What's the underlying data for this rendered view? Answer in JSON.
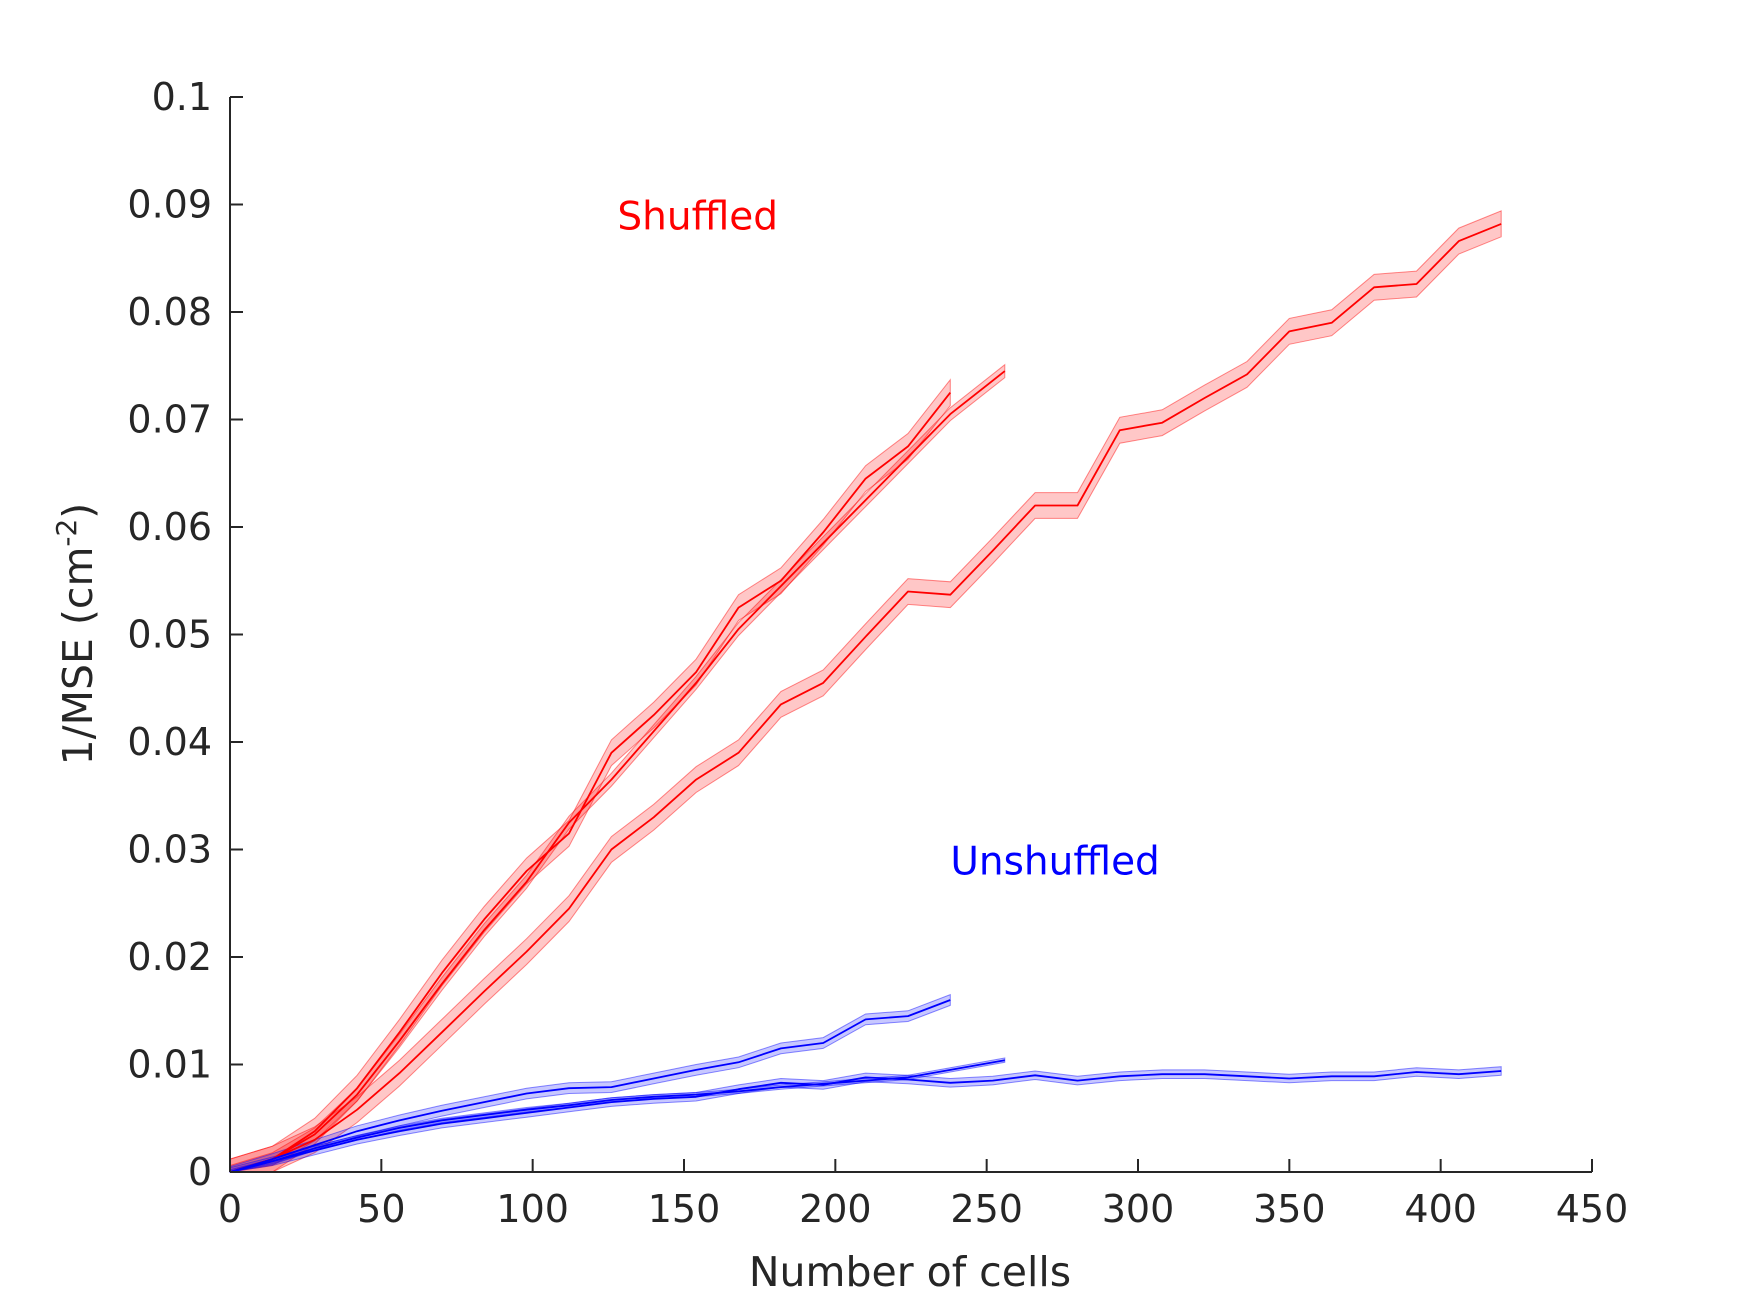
{
  "chart_data": {
    "type": "line",
    "xlabel": "Number of cells",
    "ylabel_main": "1/MSE (cm",
    "ylabel_sup": "-2",
    "ylabel_close": ")",
    "xlim": [
      0,
      450
    ],
    "ylim": [
      0,
      0.1
    ],
    "grid": false,
    "xticks": [
      "0",
      "50",
      "100",
      "150",
      "200",
      "250",
      "300",
      "350",
      "400",
      "450"
    ],
    "xtick_values": [
      0,
      50,
      100,
      150,
      200,
      250,
      300,
      350,
      400,
      450
    ],
    "yticks": [
      "0",
      "0.01",
      "0.02",
      "0.03",
      "0.04",
      "0.05",
      "0.06",
      "0.07",
      "0.08",
      "0.09",
      "0.1"
    ],
    "ytick_values": [
      0,
      0.01,
      0.02,
      0.03,
      0.04,
      0.05,
      0.06,
      0.07,
      0.08,
      0.09,
      0.1
    ],
    "annotations": [
      {
        "text": "Shuffled",
        "x": 128,
        "y": 0.089,
        "color": "#ff0000"
      },
      {
        "text": "Unshuffled",
        "x": 238,
        "y": 0.029,
        "color": "#0000ff"
      }
    ],
    "series": [
      {
        "group": "Shuffled",
        "color": "#ff0000",
        "x": [
          0,
          14,
          28,
          42,
          56,
          70,
          84,
          98,
          112,
          126,
          140,
          154,
          168,
          182,
          196,
          210,
          224,
          238
        ],
        "y": [
          0,
          0.0012,
          0.0038,
          0.0078,
          0.013,
          0.0185,
          0.0235,
          0.028,
          0.0315,
          0.039,
          0.0425,
          0.0465,
          0.0525,
          0.055,
          0.0595,
          0.0645,
          0.0675,
          0.0725
        ],
        "band": 0.0012
      },
      {
        "group": "Shuffled",
        "color": "#ff0000",
        "x": [
          0,
          14,
          28,
          42,
          56,
          70,
          84,
          98,
          112,
          126,
          140,
          154,
          168,
          182,
          196,
          210,
          224,
          238,
          256
        ],
        "y": [
          0,
          0.0012,
          0.0035,
          0.0072,
          0.0122,
          0.0175,
          0.0225,
          0.027,
          0.0325,
          0.0365,
          0.041,
          0.0455,
          0.0505,
          0.0545,
          0.0585,
          0.0625,
          0.0665,
          0.0705,
          0.0745
        ],
        "band": 0.0006
      },
      {
        "group": "Shuffled",
        "color": "#ff0000",
        "x": [
          0,
          14,
          28,
          42,
          56,
          70,
          84,
          98,
          112,
          126,
          140,
          154,
          168,
          182,
          196,
          210,
          224,
          238,
          252,
          266,
          280,
          294,
          308,
          322,
          336,
          350,
          364,
          378,
          392,
          406,
          420
        ],
        "y": [
          0,
          0.0012,
          0.003,
          0.0058,
          0.0092,
          0.013,
          0.0168,
          0.0205,
          0.0245,
          0.03,
          0.033,
          0.0365,
          0.039,
          0.0435,
          0.0455,
          0.0498,
          0.054,
          0.0537,
          0.0578,
          0.062,
          0.062,
          0.069,
          0.0697,
          0.072,
          0.0742,
          0.0782,
          0.079,
          0.0823,
          0.0826,
          0.0866,
          0.0882
        ],
        "band": 0.0012
      },
      {
        "group": "Unshuffled",
        "color": "#0000ff",
        "x": [
          0,
          14,
          28,
          42,
          56,
          70,
          84,
          98,
          112,
          126,
          140,
          154,
          168,
          182,
          196,
          210,
          224,
          238
        ],
        "y": [
          0,
          0.0012,
          0.0025,
          0.0038,
          0.0048,
          0.0057,
          0.0065,
          0.0073,
          0.0078,
          0.0079,
          0.0087,
          0.0095,
          0.0102,
          0.0115,
          0.012,
          0.0142,
          0.0145,
          0.016
        ],
        "band": 0.0005
      },
      {
        "group": "Unshuffled",
        "color": "#0000ff",
        "x": [
          0,
          14,
          28,
          42,
          56,
          70,
          84,
          98,
          112,
          126,
          140,
          154,
          168,
          182,
          196,
          210,
          224,
          238,
          256
        ],
        "y": [
          0,
          0.001,
          0.0022,
          0.0032,
          0.0041,
          0.0048,
          0.0053,
          0.0058,
          0.0062,
          0.0067,
          0.007,
          0.0072,
          0.0075,
          0.0079,
          0.0082,
          0.0085,
          0.0088,
          0.0095,
          0.0104
        ],
        "band": 0.0002
      },
      {
        "group": "Unshuffled",
        "color": "#0000ff",
        "x": [
          0,
          14,
          28,
          42,
          56,
          70,
          84,
          98,
          112,
          126,
          140,
          154,
          168,
          182,
          196,
          210,
          224,
          238,
          252,
          266,
          280,
          294,
          308,
          322,
          336,
          350,
          364,
          378,
          392,
          406,
          420
        ],
        "y": [
          0,
          0.001,
          0.002,
          0.003,
          0.0038,
          0.0045,
          0.005,
          0.0055,
          0.006,
          0.0065,
          0.0068,
          0.007,
          0.0077,
          0.0083,
          0.0081,
          0.0088,
          0.0086,
          0.0083,
          0.0085,
          0.009,
          0.0085,
          0.0089,
          0.0091,
          0.0091,
          0.0089,
          0.0087,
          0.0089,
          0.0089,
          0.0093,
          0.0091,
          0.0094
        ],
        "band": 0.0004
      }
    ]
  }
}
